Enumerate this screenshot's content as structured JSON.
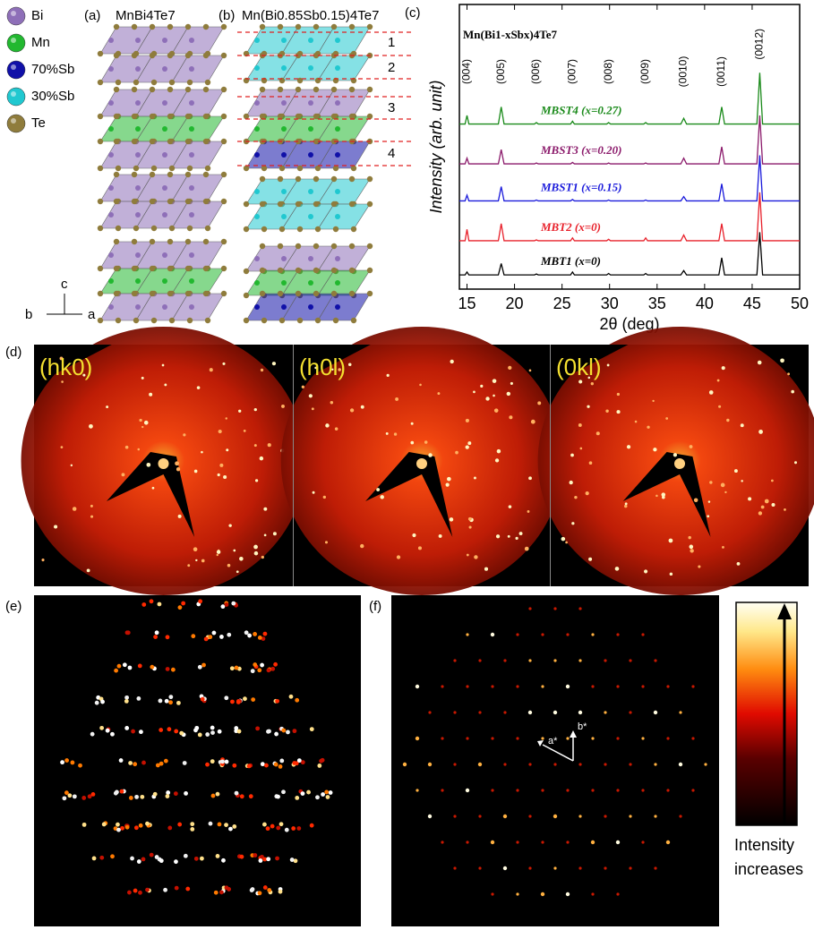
{
  "legend": [
    {
      "label": "Bi",
      "color": "#8e6fb8"
    },
    {
      "label": "Mn",
      "color": "#22b830"
    },
    {
      "label": "70%Sb",
      "color": "#1010a8"
    },
    {
      "label": "30%Sb",
      "color": "#20c8d0"
    },
    {
      "label": "Te",
      "color": "#8f7c3c"
    }
  ],
  "axes_labels": {
    "c": "c",
    "b": "b",
    "a": "a"
  },
  "panel_a": {
    "label": "(a)",
    "title": "MnBi4Te7"
  },
  "panel_b": {
    "label": "(b)",
    "title": "Mn(Bi0.85Sb0.15)4Te7",
    "layers": [
      "1",
      "2",
      "3",
      "4"
    ]
  },
  "panel_c": {
    "label": "(c)"
  },
  "panel_d": {
    "label": "(d)",
    "images": [
      "(hk0)",
      "(h0l)",
      "(0kl)"
    ]
  },
  "panel_e": {
    "label": "(e)"
  },
  "panel_f": {
    "label": "(f)",
    "vectors": [
      "a*",
      "b*"
    ],
    "colorbar_label": [
      "Intensity",
      "increases"
    ]
  },
  "chart_data": {
    "type": "line",
    "title": "Mn(Bi1-xSbx)4Te7",
    "x_label": "2θ (deg)",
    "y_label": "Intensity (arb. unit)",
    "xlim": [
      14.2,
      50
    ],
    "xticks": [
      15,
      20,
      25,
      30,
      35,
      40,
      45,
      50
    ],
    "ylim": [
      0,
      100
    ],
    "x": [
      14.2,
      14.8,
      15,
      15.2,
      18.3,
      18.6,
      18.9,
      22.1,
      22.3,
      22.5,
      25.9,
      26.1,
      26.3,
      29.7,
      29.9,
      30.1,
      33.6,
      33.8,
      34,
      37.5,
      37.8,
      38.1,
      41.5,
      41.8,
      42.1,
      45.5,
      45.8,
      46.1,
      50
    ],
    "peak_x": [
      15,
      18.6,
      22.3,
      26.1,
      29.9,
      33.8,
      37.8,
      41.8,
      45.8
    ],
    "peak_labels": [
      "(004)",
      "(005)",
      "(006)",
      "(007)",
      "(008)",
      "(009)",
      "(0010)",
      "(0011)",
      "(0012)"
    ],
    "series": [
      {
        "name": "MBT1 (x=0)",
        "color": "#000000",
        "values": [
          5,
          5,
          6,
          5,
          5,
          9,
          5,
          5,
          5.3,
          5,
          5,
          6,
          5,
          5,
          5.5,
          5,
          5,
          5.5,
          5,
          5,
          6.5,
          5,
          5,
          11,
          5,
          5,
          20,
          5,
          5
        ]
      },
      {
        "name": "MBT2 (x=0)",
        "color": "#e8202a",
        "values": [
          17,
          17,
          21,
          17,
          17,
          23,
          17,
          17,
          17.3,
          17,
          17,
          18,
          17,
          17,
          17.5,
          17,
          17,
          18,
          17,
          17,
          19,
          17,
          17,
          23,
          17,
          17,
          34,
          17,
          17
        ]
      },
      {
        "name": "MBST1 (x=0.15)",
        "color": "#1a1adb",
        "values": [
          31,
          31,
          33,
          31,
          31,
          36,
          31,
          31,
          31.3,
          31,
          31,
          31.5,
          31,
          31,
          31.3,
          31,
          31,
          31.3,
          31,
          31,
          32.5,
          31,
          31,
          37,
          31,
          31,
          47,
          31,
          31
        ]
      },
      {
        "name": "MBST3 (x=0.20)",
        "color": "#8b1a6b",
        "values": [
          44,
          44,
          46,
          44,
          44,
          49,
          44,
          44,
          44.3,
          44,
          44,
          44.5,
          44,
          44,
          44.3,
          44,
          44,
          44.3,
          44,
          44,
          46,
          44,
          44,
          50,
          44,
          44,
          61,
          44,
          44
        ]
      },
      {
        "name": "MBST4 (x=0.27)",
        "color": "#1a8a1a",
        "values": [
          58,
          58,
          61,
          58,
          58,
          64,
          58,
          58,
          58.5,
          58,
          58,
          59,
          58,
          58,
          58.5,
          58,
          58,
          58.5,
          58,
          58,
          60,
          58,
          58,
          64,
          58,
          58,
          76,
          58,
          58
        ]
      }
    ]
  }
}
